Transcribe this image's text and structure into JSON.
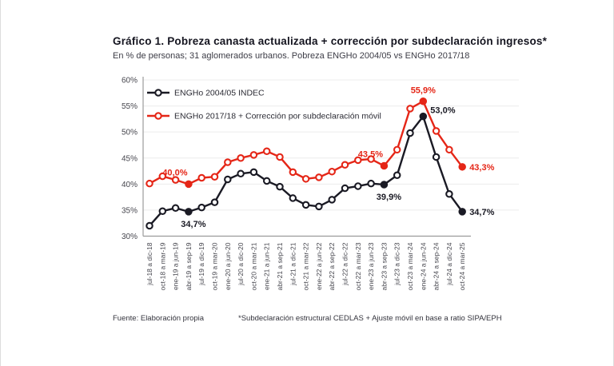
{
  "header": {
    "title": "Gráfico 1. Pobreza canasta actualizada + corrección por subdeclaración ingresos*",
    "subtitle": "En % de personas; 31 aglomerados urbanos. Pobreza ENGHo 2004/05 vs ENGHo 2017/18"
  },
  "footer": {
    "source": "Fuente: Elaboración propia",
    "note": "*Subdeclaración estructural CEDLAS + Ajuste móvil en base a ratio SIPA/EPH"
  },
  "colors": {
    "series_black": "#1a1a24",
    "series_red": "#e52617",
    "grid": "#ececec",
    "axis": "#9b9b9b",
    "tick_text": "#45454d"
  },
  "chart_data": {
    "type": "line",
    "title": "Gráfico 1. Pobreza canasta actualizada + corrección por subdeclaración ingresos*",
    "subtitle": "En % de personas; 31 aglomerados urbanos. Pobreza ENGHo 2004/05 vs ENGHo 2017/18",
    "ylim": [
      30,
      60
    ],
    "y_ticks": [
      "60%",
      "55%",
      "50%",
      "45%",
      "40%",
      "35%",
      "30%"
    ],
    "grid": true,
    "legend_position": "top-left",
    "categories": [
      "jul-18 a dic-18",
      "oct-18 a mar-19",
      "ene-19 a jun-19",
      "abr-19 a sep-19",
      "jul-19 a dic-19",
      "oct-19 a mar-20",
      "ene-20 a jun-20",
      "jul-20 a dic-20",
      "oct-20 a mar-21",
      "ene-21 a jun-21",
      "abr-21 a sep-21",
      "jul-21 a dic-21",
      "oct-21 a mar-22",
      "ene-22 a jun-22",
      "abr-22 a sep-22",
      "jul-22 a dic-22",
      "oct-22 a mar-23",
      "ene-23 a jun-23",
      "abr-23 a sep-23",
      "jul-23 a dic-23",
      "oct-23 a mar-24",
      "ene-24 a jun-24",
      "abr-24 a sep-24",
      "jul-24 a dic-24",
      "oct-24 a mar-25"
    ],
    "series": [
      {
        "name": "ENGHo 2004/05 INDEC",
        "color": "#1a1a24",
        "values": [
          32.0,
          34.8,
          35.4,
          34.7,
          35.5,
          36.5,
          40.9,
          42.0,
          42.3,
          40.6,
          39.5,
          37.3,
          36.0,
          35.7,
          37.0,
          39.2,
          39.6,
          40.1,
          39.9,
          41.7,
          49.8,
          53.0,
          45.2,
          38.1,
          34.7
        ],
        "annotations": [
          {
            "index": 3,
            "text": "34,7%",
            "placement": "below"
          },
          {
            "index": 18,
            "text": "39,9%",
            "placement": "below"
          },
          {
            "index": 21,
            "text": "53,0%",
            "placement": "right-up"
          },
          {
            "index": 24,
            "text": "34,7%",
            "placement": "right"
          }
        ]
      },
      {
        "name": "ENGHo 2017/18 + Corrección por subdeclaración móvil",
        "color": "#e52617",
        "values": [
          40.1,
          41.5,
          40.8,
          40.0,
          41.2,
          41.4,
          44.2,
          45.0,
          45.6,
          46.3,
          45.2,
          42.3,
          41.0,
          41.3,
          42.4,
          43.7,
          44.6,
          44.8,
          43.5,
          46.6,
          54.5,
          55.9,
          50.2,
          46.6,
          43.3
        ],
        "annotations": [
          {
            "index": 3,
            "text": "40,0%",
            "placement": "above-left"
          },
          {
            "index": 18,
            "text": "43,5%",
            "placement": "above-left"
          },
          {
            "index": 21,
            "text": "55,9%",
            "placement": "above"
          },
          {
            "index": 24,
            "text": "43,3%",
            "placement": "right"
          }
        ]
      }
    ]
  }
}
